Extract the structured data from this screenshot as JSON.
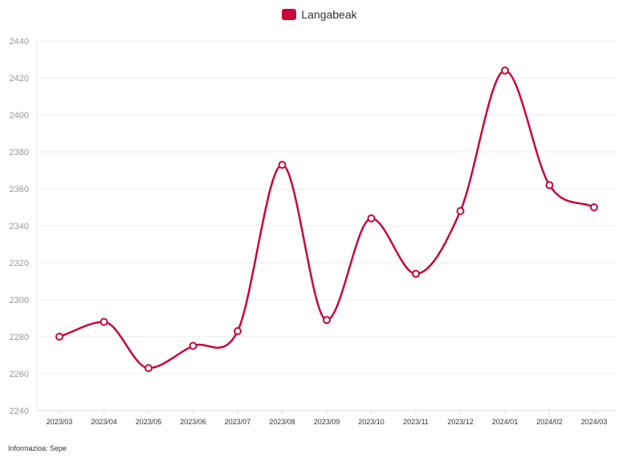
{
  "legend": {
    "label": "Langabeak"
  },
  "source": "Informazioa: Sepe",
  "colors": {
    "series": "#c8063a",
    "grid": "#eeeeee",
    "axis": "#dddddd"
  },
  "chart_data": {
    "type": "line",
    "categories": [
      "2023/03",
      "2023/04",
      "2023/05",
      "2023/06",
      "2023/07",
      "2023/08",
      "2023/09",
      "2023/10",
      "2023/11",
      "2023/12",
      "2024/01",
      "2024/02",
      "2024/03"
    ],
    "series": [
      {
        "name": "Langabeak",
        "values": [
          2280,
          2288,
          2263,
          2275,
          2283,
          2373,
          2289,
          2344,
          2314,
          2348,
          2424,
          2362,
          2350
        ]
      }
    ],
    "yticks": [
      2240,
      2260,
      2280,
      2300,
      2320,
      2340,
      2360,
      2380,
      2400,
      2420,
      2440
    ],
    "ylim": [
      2240,
      2440
    ],
    "grid": true,
    "legend_position": "top-center",
    "curve": "smooth",
    "markers": "hollow-circle"
  }
}
